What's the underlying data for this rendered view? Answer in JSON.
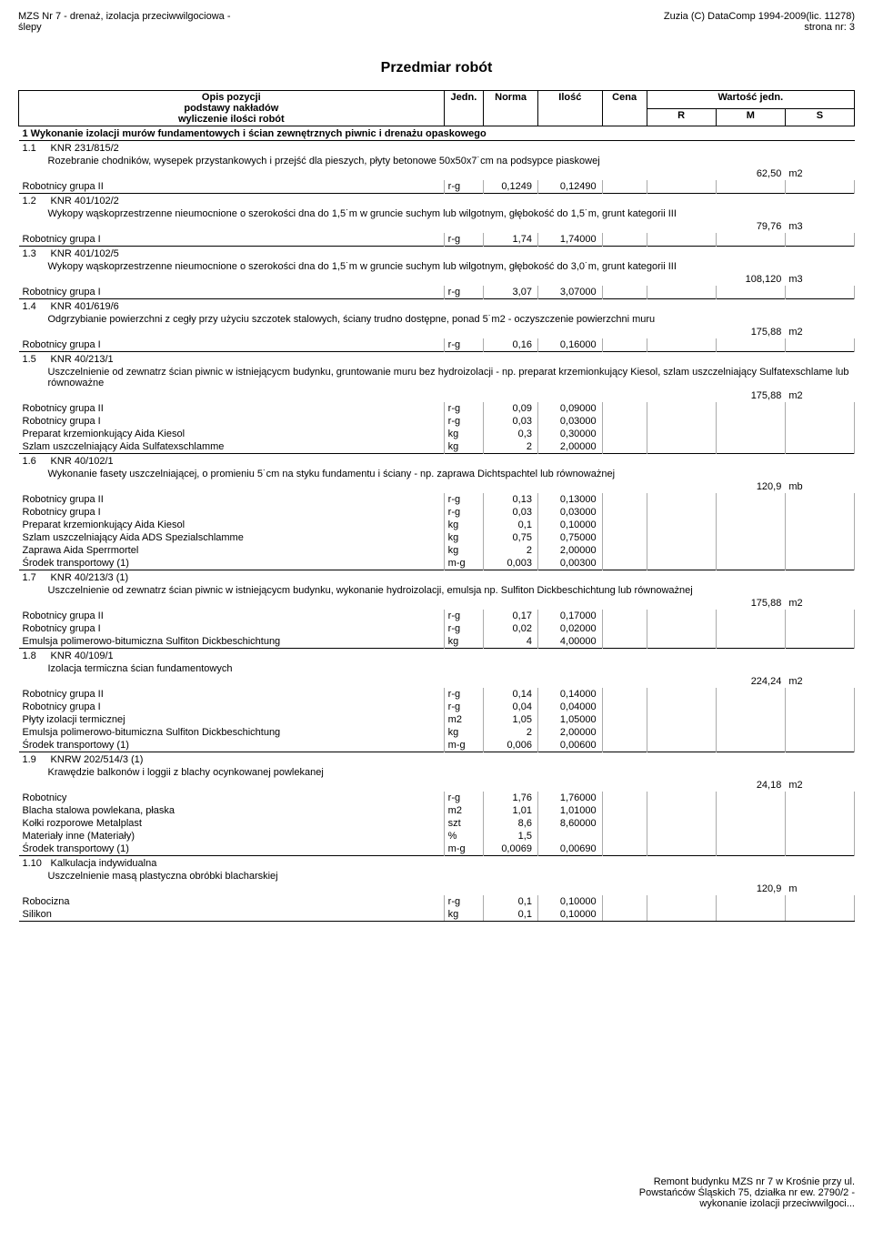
{
  "header": {
    "left_line1": "MZS Nr 7 - drenaż, izolacja przeciwwilgociowa -",
    "left_line2": "ślepy",
    "right_line1": "Zuzia (C) DataComp 1994-2009(lic. 11278)",
    "right_line2": "strona nr:        3"
  },
  "title": "Przedmiar robót",
  "columns": {
    "opis1": "Opis pozycji",
    "opis2": "podstawy nakładów",
    "opis3": "wyliczenie ilości robót",
    "jedn": "Jedn.",
    "norma": "Norma",
    "ilosc": "Ilość",
    "cena": "Cena",
    "wartosc": "Wartość jedn.",
    "r": "R",
    "m": "M",
    "s": "S"
  },
  "section": {
    "no": "1",
    "title": "Wykonanie izolacji murów fundamentowych i ścian zewnętrznych piwnic i drenażu opaskowego"
  },
  "items": [
    {
      "no": "1.1",
      "code": "KNR 231/815/2",
      "desc": "Rozebranie chodników, wysepek przystankowych i przejść dla pieszych, płyty betonowe 50x50x7˙cm na podsypce piaskowej",
      "qty": "62,50",
      "unit": "m2",
      "resources": [
        {
          "name": "Robotnicy grupa II",
          "u": "r-g",
          "n": "0,1249",
          "i": "0,12490"
        }
      ]
    },
    {
      "no": "1.2",
      "code": "KNR 401/102/2",
      "desc": "Wykopy wąskoprzestrzenne nieumocnione o szerokości dna do 1,5˙m w gruncie suchym lub wilgotnym, głębokość do 1,5˙m, grunt kategorii III",
      "qty": "79,76",
      "unit": "m3",
      "resources": [
        {
          "name": "Robotnicy grupa I",
          "u": "r-g",
          "n": "1,74",
          "i": "1,74000"
        }
      ]
    },
    {
      "no": "1.3",
      "code": "KNR 401/102/5",
      "desc": "Wykopy wąskoprzestrzenne nieumocnione o szerokości dna do 1,5˙m w gruncie suchym lub wilgotnym, głębokość do 3,0˙m, grunt kategorii III",
      "qty": "108,120",
      "unit": "m3",
      "resources": [
        {
          "name": "Robotnicy grupa I",
          "u": "r-g",
          "n": "3,07",
          "i": "3,07000"
        }
      ]
    },
    {
      "no": "1.4",
      "code": "KNR 401/619/6",
      "desc": "Odgrzybianie powierzchni z cegły przy użyciu szczotek stalowych, ściany trudno dostępne, ponad 5˙m2 - oczyszczenie powierzchni muru",
      "qty": "175,88",
      "unit": "m2",
      "resources": [
        {
          "name": "Robotnicy grupa I",
          "u": "r-g",
          "n": "0,16",
          "i": "0,16000"
        }
      ]
    },
    {
      "no": "1.5",
      "code": "KNR 40/213/1",
      "desc": "Uszczelnienie od zewnatrz ścian piwnic w istniejącycm budynku, gruntowanie muru bez hydroizolacji - np. preparat krzemionkujący Kiesol, szlam uszczelniający Sulfatexschlame lub równoważne",
      "qty": "175,88",
      "unit": "m2",
      "resources": [
        {
          "name": "Robotnicy grupa II",
          "u": "r-g",
          "n": "0,09",
          "i": "0,09000"
        },
        {
          "name": "Robotnicy grupa I",
          "u": "r-g",
          "n": "0,03",
          "i": "0,03000"
        },
        {
          "name": "Preparat krzemionkujący Aida Kiesol",
          "u": "kg",
          "n": "0,3",
          "i": "0,30000"
        },
        {
          "name": "Szlam uszczelniający Aida Sulfatexschlamme",
          "u": "kg",
          "n": "2",
          "i": "2,00000"
        }
      ]
    },
    {
      "no": "1.6",
      "code": "KNR 40/102/1",
      "desc": "Wykonanie fasety uszczelniającej, o promieniu 5˙cm na styku fundamentu i ściany - np. zaprawa Dichtspachtel lub równoważnej",
      "qty": "120,9",
      "unit": "mb",
      "resources": [
        {
          "name": "Robotnicy grupa II",
          "u": "r-g",
          "n": "0,13",
          "i": "0,13000"
        },
        {
          "name": "Robotnicy grupa I",
          "u": "r-g",
          "n": "0,03",
          "i": "0,03000"
        },
        {
          "name": "Preparat krzemionkujący Aida Kiesol",
          "u": "kg",
          "n": "0,1",
          "i": "0,10000"
        },
        {
          "name": "Szlam uszczelniający Aida ADS Spezialschlamme",
          "u": "kg",
          "n": "0,75",
          "i": "0,75000"
        },
        {
          "name": "Zaprawa Aida Sperrmortel",
          "u": "kg",
          "n": "2",
          "i": "2,00000"
        },
        {
          "name": "Środek transportowy (1)",
          "u": "m-g",
          "n": "0,003",
          "i": "0,00300"
        }
      ]
    },
    {
      "no": "1.7",
      "code": "KNR 40/213/3 (1)",
      "desc": "Uszczelnienie od zewnatrz ścian piwnic w istniejącycm budynku, wykonanie hydroizolacji, emulsja np. Sulfiton Dickbeschichtung lub równoważnej",
      "qty": "175,88",
      "unit": "m2",
      "resources": [
        {
          "name": "Robotnicy grupa II",
          "u": "r-g",
          "n": "0,17",
          "i": "0,17000"
        },
        {
          "name": "Robotnicy grupa I",
          "u": "r-g",
          "n": "0,02",
          "i": "0,02000"
        },
        {
          "name": "Emulsja polimerowo-bitumiczna Sulfiton Dickbeschichtung",
          "u": "kg",
          "n": "4",
          "i": "4,00000"
        }
      ]
    },
    {
      "no": "1.8",
      "code": "KNR 40/109/1",
      "desc": "Izolacja termiczna ścian fundamentowych",
      "qty": "224,24",
      "unit": "m2",
      "resources": [
        {
          "name": "Robotnicy grupa II",
          "u": "r-g",
          "n": "0,14",
          "i": "0,14000"
        },
        {
          "name": "Robotnicy grupa I",
          "u": "r-g",
          "n": "0,04",
          "i": "0,04000"
        },
        {
          "name": "Płyty izolacji termicznej",
          "u": "m2",
          "n": "1,05",
          "i": "1,05000"
        },
        {
          "name": "Emulsja polimerowo-bitumiczna Sulfiton Dickbeschichtung",
          "u": "kg",
          "n": "2",
          "i": "2,00000"
        },
        {
          "name": "Środek transportowy (1)",
          "u": "m-g",
          "n": "0,006",
          "i": "0,00600"
        }
      ]
    },
    {
      "no": "1.9",
      "code": "KNRW 202/514/3 (1)",
      "desc": "Krawędzie balkonów i loggii z blachy ocynkowanej powlekanej",
      "qty": "24,18",
      "unit": "m2",
      "resources": [
        {
          "name": "Robotnicy",
          "u": "r-g",
          "n": "1,76",
          "i": "1,76000"
        },
        {
          "name": "Blacha stalowa powlekana, płaska",
          "u": "m2",
          "n": "1,01",
          "i": "1,01000"
        },
        {
          "name": "Kołki rozporowe Metalplast",
          "u": "szt",
          "n": "8,6",
          "i": "8,60000"
        },
        {
          "name": "Materiały inne (Materiały)",
          "u": "%",
          "n": "1,5",
          "i": ""
        },
        {
          "name": "Środek transportowy (1)",
          "u": "m-g",
          "n": "0,0069",
          "i": "0,00690"
        }
      ]
    },
    {
      "no": "1.10",
      "code": "Kalkulacja indywidualna",
      "desc": "Uszczelnienie masą plastyczna obróbki blacharskiej",
      "qty": "120,9",
      "unit": "m",
      "resources": [
        {
          "name": "Robocizna",
          "u": "r-g",
          "n": "0,1",
          "i": "0,10000"
        },
        {
          "name": "Silikon",
          "u": "kg",
          "n": "0,1",
          "i": "0,10000"
        }
      ]
    }
  ],
  "footer": {
    "line1": "Remont budynku MZS nr 7 w Krośnie przy ul.",
    "line2": "Powstańców Śląskich 75, działka nr ew. 2790/2 -",
    "line3": "wykonanie izolacji przeciwwilgoci..."
  }
}
